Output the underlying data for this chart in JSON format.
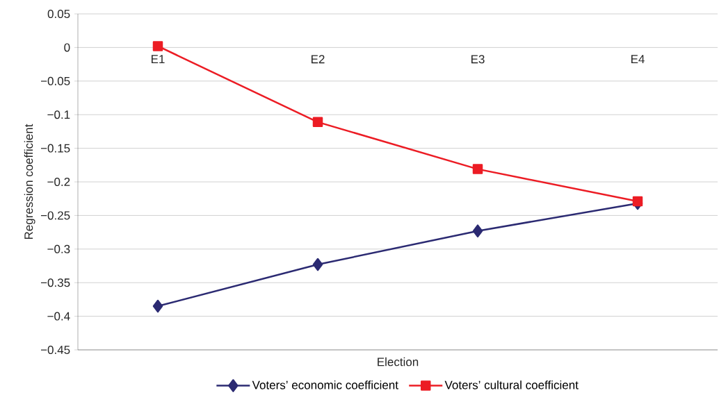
{
  "chart_data": {
    "type": "line",
    "xlabel": "Election",
    "ylabel": "Regression coefficient",
    "categories": [
      "E1",
      "E2",
      "E3",
      "E4"
    ],
    "series": [
      {
        "name": "Voters’ economic coefficient",
        "color": "#2b2a72",
        "marker": "diamond",
        "values": [
          -0.385,
          -0.323,
          -0.273,
          -0.232
        ]
      },
      {
        "name": "Voters’ cultural coefficient",
        "color": "#ec1c24",
        "marker": "square",
        "values": [
          0.002,
          -0.111,
          -0.181,
          -0.229
        ]
      }
    ],
    "ylim": [
      -0.45,
      0.05
    ],
    "yticks": [
      {
        "value": -0.45,
        "label": "−0.45"
      },
      {
        "value": -0.4,
        "label": "−0.4"
      },
      {
        "value": -0.35,
        "label": "−0.35"
      },
      {
        "value": -0.3,
        "label": "−0.3"
      },
      {
        "value": -0.25,
        "label": "−0.25"
      },
      {
        "value": -0.2,
        "label": "−0.2"
      },
      {
        "value": -0.15,
        "label": "−0.15"
      },
      {
        "value": -0.1,
        "label": "−0.1"
      },
      {
        "value": -0.05,
        "label": "−0.05"
      },
      0,
      0.05
    ],
    "grid": "y",
    "legend": "bottom",
    "line_style": "solid"
  }
}
